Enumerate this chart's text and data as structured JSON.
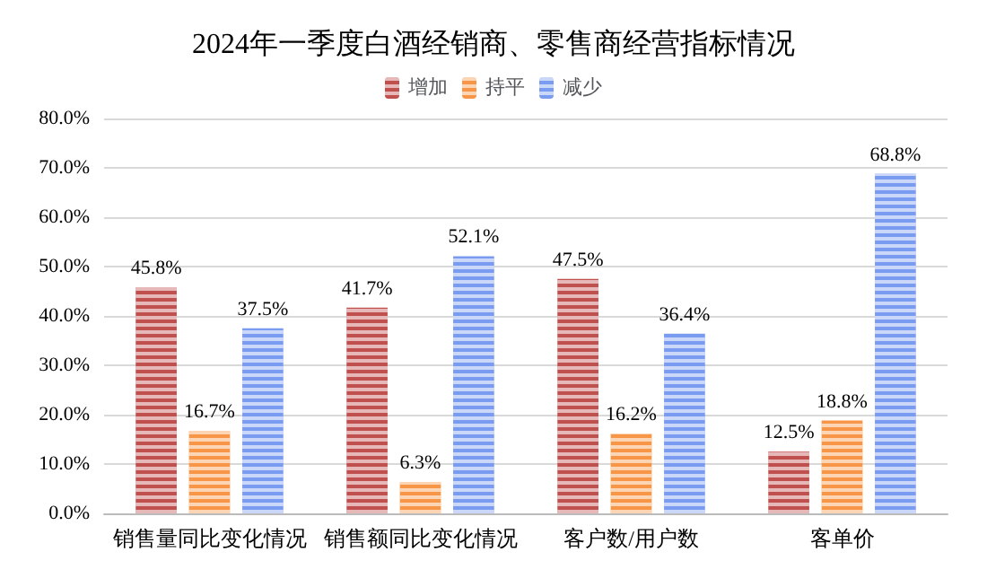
{
  "chart_data": {
    "type": "bar",
    "title": "2024年一季度白酒经销商、零售商经营指标情况",
    "categories": [
      "销售量同比变化情况",
      "销售额同比变化情况",
      "客户数/用户数",
      "客单价"
    ],
    "series": [
      {
        "name": "增加",
        "color": "#c0504d",
        "values": [
          45.8,
          41.7,
          47.5,
          12.5
        ],
        "value_labels": [
          "45.8%",
          "41.7%",
          "47.5%",
          "12.5%"
        ]
      },
      {
        "name": "持平",
        "color": "#f79646",
        "values": [
          16.7,
          6.3,
          16.2,
          18.8
        ],
        "value_labels": [
          "16.7%",
          "6.3%",
          "16.2%",
          "18.8%"
        ]
      },
      {
        "name": "减少",
        "color": "#7a9cf0",
        "values": [
          37.5,
          52.1,
          36.4,
          68.8
        ],
        "value_labels": [
          "37.5%",
          "52.1%",
          "36.4%",
          "68.8%"
        ]
      }
    ],
    "ylim": [
      0,
      80
    ],
    "yticks": [
      {
        "value": 0,
        "label": "0.0%"
      },
      {
        "value": 10,
        "label": "10.0%"
      },
      {
        "value": 20,
        "label": "20.0%"
      },
      {
        "value": 30,
        "label": "30.0%"
      },
      {
        "value": 40,
        "label": "40.0%"
      },
      {
        "value": 50,
        "label": "50.0%"
      },
      {
        "value": 60,
        "label": "60.0%"
      },
      {
        "value": 70,
        "label": "70.0%"
      },
      {
        "value": 80,
        "label": "80.0%"
      }
    ],
    "grid": "y",
    "legend": "top"
  }
}
